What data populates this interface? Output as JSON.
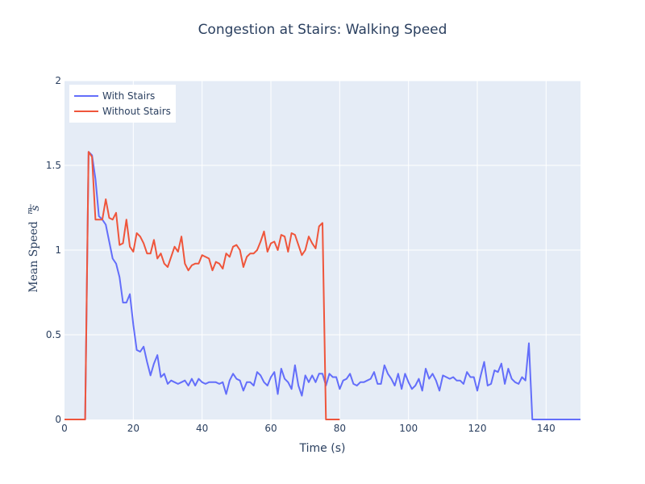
{
  "chart_data": {
    "type": "line",
    "title": "Congestion at Stairs: Walking Speed",
    "xlabel": "Time (s)",
    "ylabel": "Mean Speed m/s",
    "ylabel_main": "Mean Speed",
    "ylabel_unit_num": "m",
    "ylabel_unit_den": "s",
    "xlim": [
      0,
      150
    ],
    "ylim": [
      0,
      2
    ],
    "xticks": [
      0,
      20,
      40,
      60,
      80,
      100,
      120,
      140
    ],
    "yticks": [
      0,
      0.5,
      1,
      1.5,
      2
    ],
    "ytick_labels": [
      "0",
      "0.5",
      "1",
      "1.5",
      "2"
    ],
    "grid": true,
    "legend_position": "top-left",
    "series": [
      {
        "name": "With Stairs",
        "color": "#636efa",
        "x": [
          0,
          1,
          2,
          3,
          4,
          5,
          6,
          7,
          8,
          9,
          10,
          11,
          12,
          13,
          14,
          15,
          16,
          17,
          18,
          19,
          20,
          21,
          22,
          23,
          24,
          25,
          26,
          27,
          28,
          29,
          30,
          31,
          32,
          33,
          34,
          35,
          36,
          37,
          38,
          39,
          40,
          41,
          42,
          43,
          44,
          45,
          46,
          47,
          48,
          49,
          50,
          51,
          52,
          53,
          54,
          55,
          56,
          57,
          58,
          59,
          60,
          61,
          62,
          63,
          64,
          65,
          66,
          67,
          68,
          69,
          70,
          71,
          72,
          73,
          74,
          75,
          76,
          77,
          78,
          79,
          80,
          81,
          82,
          83,
          84,
          85,
          86,
          87,
          88,
          89,
          90,
          91,
          92,
          93,
          94,
          95,
          96,
          97,
          98,
          99,
          100,
          101,
          102,
          103,
          104,
          105,
          106,
          107,
          108,
          109,
          110,
          111,
          112,
          113,
          114,
          115,
          116,
          117,
          118,
          119,
          120,
          121,
          122,
          123,
          124,
          125,
          126,
          127,
          128,
          129,
          130,
          131,
          132,
          133,
          134,
          135,
          136,
          137,
          138,
          139,
          140,
          141,
          142,
          143,
          144,
          145,
          146,
          147,
          148,
          149,
          150
        ],
        "y": [
          0,
          0,
          0,
          0,
          0,
          0,
          0,
          1.58,
          1.56,
          1.42,
          1.2,
          1.18,
          1.15,
          1.05,
          0.95,
          0.92,
          0.84,
          0.69,
          0.69,
          0.74,
          0.56,
          0.41,
          0.4,
          0.43,
          0.34,
          0.26,
          0.33,
          0.38,
          0.25,
          0.27,
          0.21,
          0.23,
          0.22,
          0.21,
          0.22,
          0.23,
          0.2,
          0.24,
          0.2,
          0.24,
          0.22,
          0.21,
          0.22,
          0.22,
          0.22,
          0.21,
          0.22,
          0.15,
          0.23,
          0.27,
          0.24,
          0.23,
          0.17,
          0.22,
          0.22,
          0.2,
          0.28,
          0.26,
          0.22,
          0.2,
          0.25,
          0.28,
          0.15,
          0.3,
          0.24,
          0.22,
          0.18,
          0.32,
          0.2,
          0.14,
          0.26,
          0.22,
          0.26,
          0.22,
          0.27,
          0.27,
          0.2,
          0.27,
          0.25,
          0.25,
          0.18,
          0.23,
          0.24,
          0.27,
          0.21,
          0.2,
          0.22,
          0.22,
          0.23,
          0.24,
          0.28,
          0.21,
          0.21,
          0.32,
          0.27,
          0.24,
          0.2,
          0.27,
          0.18,
          0.27,
          0.22,
          0.18,
          0.2,
          0.24,
          0.17,
          0.3,
          0.24,
          0.27,
          0.23,
          0.17,
          0.26,
          0.25,
          0.24,
          0.25,
          0.23,
          0.23,
          0.21,
          0.28,
          0.25,
          0.25,
          0.17,
          0.26,
          0.34,
          0.2,
          0.21,
          0.29,
          0.28,
          0.33,
          0.21,
          0.3,
          0.24,
          0.22,
          0.21,
          0.25,
          0.23,
          0.45,
          0,
          0,
          0,
          0,
          0,
          0,
          0,
          0,
          0,
          0,
          0,
          0,
          0,
          0,
          0
        ]
      },
      {
        "name": "Without Stairs",
        "color": "#ef553b",
        "x": [
          0,
          1,
          2,
          3,
          4,
          5,
          6,
          7,
          8,
          9,
          10,
          11,
          12,
          13,
          14,
          15,
          16,
          17,
          18,
          19,
          20,
          21,
          22,
          23,
          24,
          25,
          26,
          27,
          28,
          29,
          30,
          31,
          32,
          33,
          34,
          35,
          36,
          37,
          38,
          39,
          40,
          41,
          42,
          43,
          44,
          45,
          46,
          47,
          48,
          49,
          50,
          51,
          52,
          53,
          54,
          55,
          56,
          57,
          58,
          59,
          60,
          61,
          62,
          63,
          64,
          65,
          66,
          67,
          68,
          69,
          70,
          71,
          72,
          73,
          74,
          75,
          76,
          77,
          78,
          79,
          80
        ],
        "y": [
          0,
          0,
          0,
          0,
          0,
          0,
          0,
          1.58,
          1.55,
          1.18,
          1.18,
          1.18,
          1.3,
          1.19,
          1.18,
          1.22,
          1.03,
          1.04,
          1.18,
          1.02,
          0.99,
          1.1,
          1.08,
          1.04,
          0.98,
          0.98,
          1.06,
          0.95,
          0.98,
          0.92,
          0.9,
          0.96,
          1.02,
          0.99,
          1.08,
          0.92,
          0.88,
          0.91,
          0.92,
          0.92,
          0.97,
          0.96,
          0.95,
          0.88,
          0.93,
          0.92,
          0.89,
          0.98,
          0.96,
          1.02,
          1.03,
          1.0,
          0.9,
          0.96,
          0.98,
          0.98,
          1.0,
          1.05,
          1.11,
          0.99,
          1.04,
          1.05,
          1.0,
          1.09,
          1.08,
          0.99,
          1.1,
          1.09,
          1.03,
          0.97,
          1.0,
          1.08,
          1.04,
          1.01,
          1.14,
          1.16,
          0,
          0,
          0,
          0,
          0
        ]
      }
    ]
  }
}
